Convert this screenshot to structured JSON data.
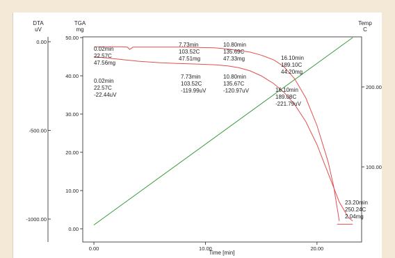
{
  "chart_data": {
    "type": "line",
    "axes": {
      "dta": {
        "label": "DTA",
        "unit": "uV",
        "ticks": [
          {
            "value": 0,
            "label": "0.00"
          },
          {
            "value": -500,
            "label": "-500.00"
          },
          {
            "value": -1000,
            "label": "-1000.00"
          }
        ]
      },
      "tga": {
        "label": "TGA",
        "unit": "mg",
        "ticks": [
          {
            "value": 50,
            "label": "50.00"
          },
          {
            "value": 40,
            "label": "40.00"
          },
          {
            "value": 30,
            "label": "30.00"
          },
          {
            "value": 20,
            "label": "20.00"
          },
          {
            "value": 10,
            "label": "10.00"
          },
          {
            "value": 0,
            "label": "0.00"
          }
        ],
        "ylim": [
          0,
          50
        ]
      },
      "temp": {
        "label": "Temp",
        "unit": "C",
        "ticks": [
          {
            "value": 200,
            "label": "200.00"
          },
          {
            "value": 100,
            "label": "100.00"
          }
        ]
      },
      "time": {
        "label": "Time [min]",
        "ticks": [
          {
            "value": 0,
            "label": "0.00"
          },
          {
            "value": 10,
            "label": "10.00"
          },
          {
            "value": 20,
            "label": "20.00"
          }
        ],
        "xlim": [
          -1,
          24
        ]
      }
    },
    "series": [
      {
        "axis": "tga",
        "color": "#e05050",
        "x": [
          0.02,
          2.5,
          3.0,
          3.2,
          3.5,
          7.73,
          10.8,
          12.0,
          13.0,
          14.0,
          15.0,
          16.1,
          17.0,
          18.0,
          19.0,
          20.0,
          21.0,
          21.5,
          22.0
        ],
        "y": [
          47.56,
          47.56,
          47.5,
          46.9,
          47.5,
          47.51,
          47.33,
          47.0,
          46.6,
          46.2,
          45.4,
          44.2,
          42.5,
          39.2,
          34.2,
          27.0,
          17.5,
          11.0,
          2.04
        ]
      },
      {
        "axis": "tga",
        "color": "#e05050",
        "x": [
          0.02,
          2.0,
          4.0,
          6.0,
          7.73,
          9.0,
          10.8,
          12.0,
          13.0,
          14.0,
          15.0,
          16.1,
          17.0,
          18.0,
          19.0,
          20.0,
          21.0,
          22.0,
          22.8,
          23.2
        ],
        "y": [
          45.0,
          44.4,
          43.8,
          43.4,
          43.2,
          43.1,
          42.9,
          42.6,
          42.1,
          41.3,
          40.0,
          38.0,
          35.8,
          32.5,
          28.0,
          22.0,
          14.5,
          7.0,
          3.0,
          2.04
        ]
      },
      {
        "axis": "tga",
        "color": "#e05050",
        "x": [
          21.8,
          23.2
        ],
        "y": [
          1.2,
          1.2
        ]
      },
      {
        "axis": "tga",
        "color": "#3a9a3a",
        "x": [
          0.0,
          23.2
        ],
        "y": [
          1.0,
          50.0
        ]
      }
    ],
    "annotations": [
      {
        "lines": [
          "0.02min",
          "22.57C",
          "47.56mg"
        ]
      },
      {
        "lines": [
          "0.02min",
          "22.57C",
          "-22.44uV"
        ]
      },
      {
        "lines": [
          "7.73min",
          "103.52C",
          "47.51mg"
        ]
      },
      {
        "lines": [
          "7.73min",
          "103.52C",
          "-119.99uV"
        ]
      },
      {
        "lines": [
          "10.80min",
          "135.69C",
          "47.33mg"
        ]
      },
      {
        "lines": [
          "10.80min",
          "135.67C",
          "-120.97uV"
        ]
      },
      {
        "lines": [
          "16.10min",
          "189.10C",
          "44.20mg"
        ]
      },
      {
        "lines": [
          "16.10min",
          "189.08C",
          "-221.79uV"
        ]
      },
      {
        "lines": [
          "23.20min",
          "250.24C",
          "2.04mg"
        ]
      }
    ],
    "grid": false
  }
}
